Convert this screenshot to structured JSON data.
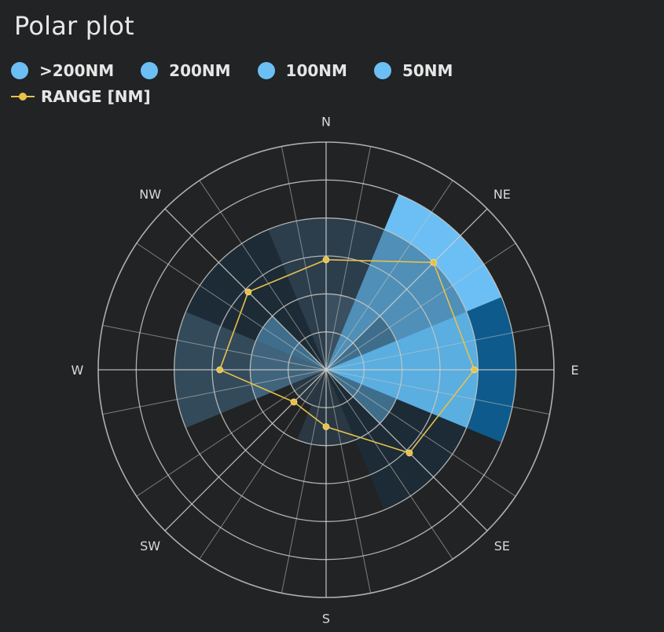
{
  "title": "Polar plot",
  "legend": {
    "items": [
      {
        "label": ">200NM",
        "color": "#6bbff5"
      },
      {
        "label": "200NM",
        "color": "#6bbff5"
      },
      {
        "label": "100NM",
        "color": "#6bbff5"
      },
      {
        "label": "50NM",
        "color": "#6bbff5"
      }
    ],
    "line": {
      "label": "RANGE [NM]",
      "color": "#e8c14a"
    }
  },
  "chart_data": {
    "type": "polar",
    "title": "Polar plot",
    "directions": [
      "N",
      "NE",
      "E",
      "SE",
      "S",
      "SW",
      "W",
      "NW"
    ],
    "angular_ticks": [
      "N",
      "NE",
      "E",
      "SE",
      "S",
      "SW",
      "W",
      "NW"
    ],
    "sectors_count": 16,
    "radial_max": 6,
    "radial_rings": [
      1,
      2,
      3,
      4,
      5,
      6
    ],
    "grid": true,
    "legend_position": "top-left",
    "bar_series": [
      {
        "name": "sector-extent",
        "color": "#1b2836",
        "sectors": [
          {
            "start": -22.5,
            "end": 22.5,
            "r": 4,
            "color": "#2c3d4c"
          },
          {
            "start": 22.5,
            "end": 45,
            "r": 2,
            "color": "#2c3d4c"
          },
          {
            "start": 22.5,
            "end": 67.5,
            "r": 5,
            "color": "#6bbff5"
          },
          {
            "start": 67.5,
            "end": 112.5,
            "r": 5,
            "color": "#0e5a8c"
          },
          {
            "start": 112.5,
            "end": 157.5,
            "r": 4,
            "color": "#1d2b36"
          },
          {
            "start": 157.5,
            "end": 202.5,
            "r": 2,
            "color": "#2a3843"
          },
          {
            "start": 202.5,
            "end": 247.5,
            "r": 1,
            "color": "#2a3843"
          },
          {
            "start": 247.5,
            "end": 292.5,
            "r": 4,
            "color": "#334a5b"
          },
          {
            "start": 292.5,
            "end": 337.5,
            "r": 4,
            "color": "#1d2b36"
          }
        ]
      },
      {
        "name": "sector-inner",
        "sectors": [
          {
            "start": 22.5,
            "end": 67.5,
            "r": 4,
            "color": "#4f8fb8"
          },
          {
            "start": 67.5,
            "end": 112.5,
            "r": 4,
            "color": "#5aaee0"
          },
          {
            "start": 112.5,
            "end": 135,
            "r": 2,
            "color": "#3f6e8c"
          },
          {
            "start": 292.5,
            "end": 315,
            "r": 2,
            "color": "#3f6e8c"
          },
          {
            "start": 247.5,
            "end": 292.5,
            "r": 2,
            "color": "#41647d"
          },
          {
            "start": 0,
            "end": 22.5,
            "r": 2,
            "color": "#3a4f60"
          },
          {
            "start": 45,
            "end": 67.5,
            "r": 2,
            "color": "#3f6e8c"
          }
        ]
      }
    ],
    "series": [
      {
        "name": "RANGE [NM]",
        "theta": [
          0,
          45,
          90,
          135,
          180,
          225,
          270,
          315
        ],
        "r": [
          2.9,
          4.0,
          3.9,
          3.1,
          1.5,
          1.2,
          2.8,
          2.9
        ],
        "color": "#e8c14a"
      }
    ]
  }
}
